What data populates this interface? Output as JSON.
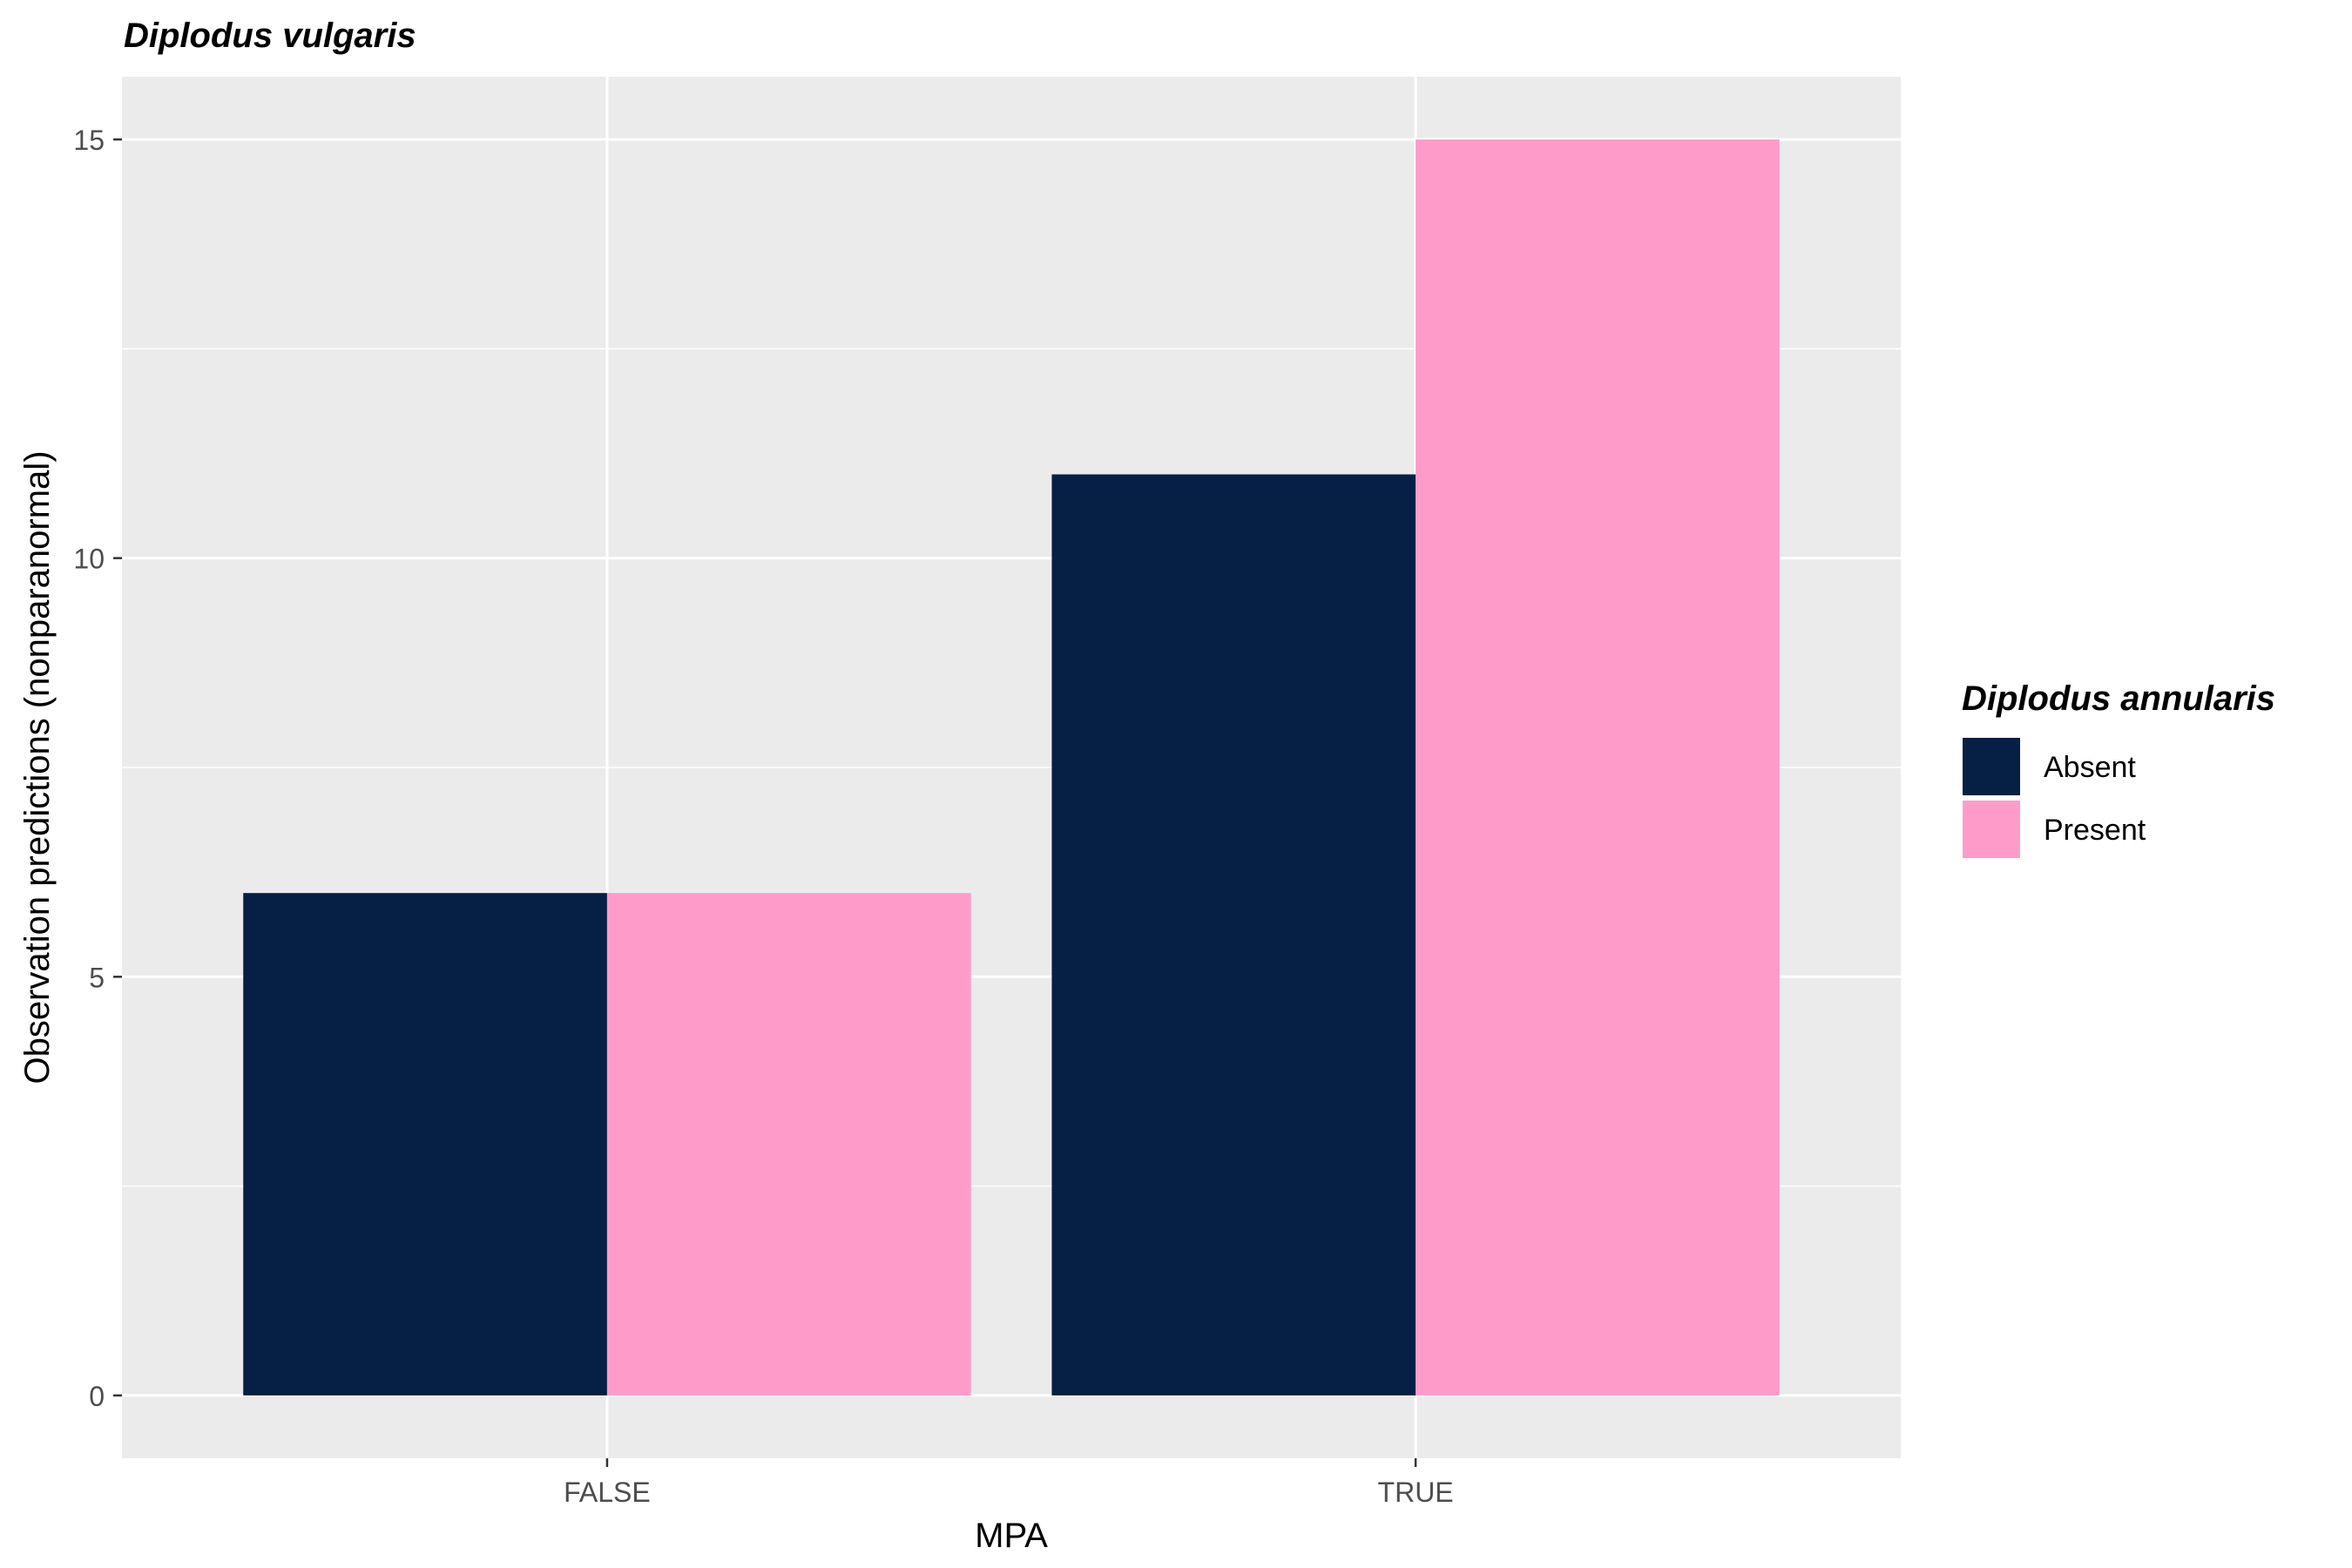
{
  "chart_data": {
    "type": "bar",
    "title": "Diplodus vulgaris",
    "xlabel": "MPA",
    "ylabel": "Observation predictions (nonparanormal)",
    "categories": [
      "FALSE",
      "TRUE"
    ],
    "series": [
      {
        "name": "Absent",
        "values": [
          6,
          11
        ],
        "color": "#061f45"
      },
      {
        "name": "Present",
        "values": [
          6,
          15
        ],
        "color": "#ff9bc9"
      }
    ],
    "ylim": [
      -0.75,
      15.75
    ],
    "yticks": [
      0,
      5,
      10,
      15
    ],
    "grid": true,
    "panel_background": "#ebebeb",
    "legend": {
      "title": "Diplodus annularis",
      "position": "right"
    }
  }
}
